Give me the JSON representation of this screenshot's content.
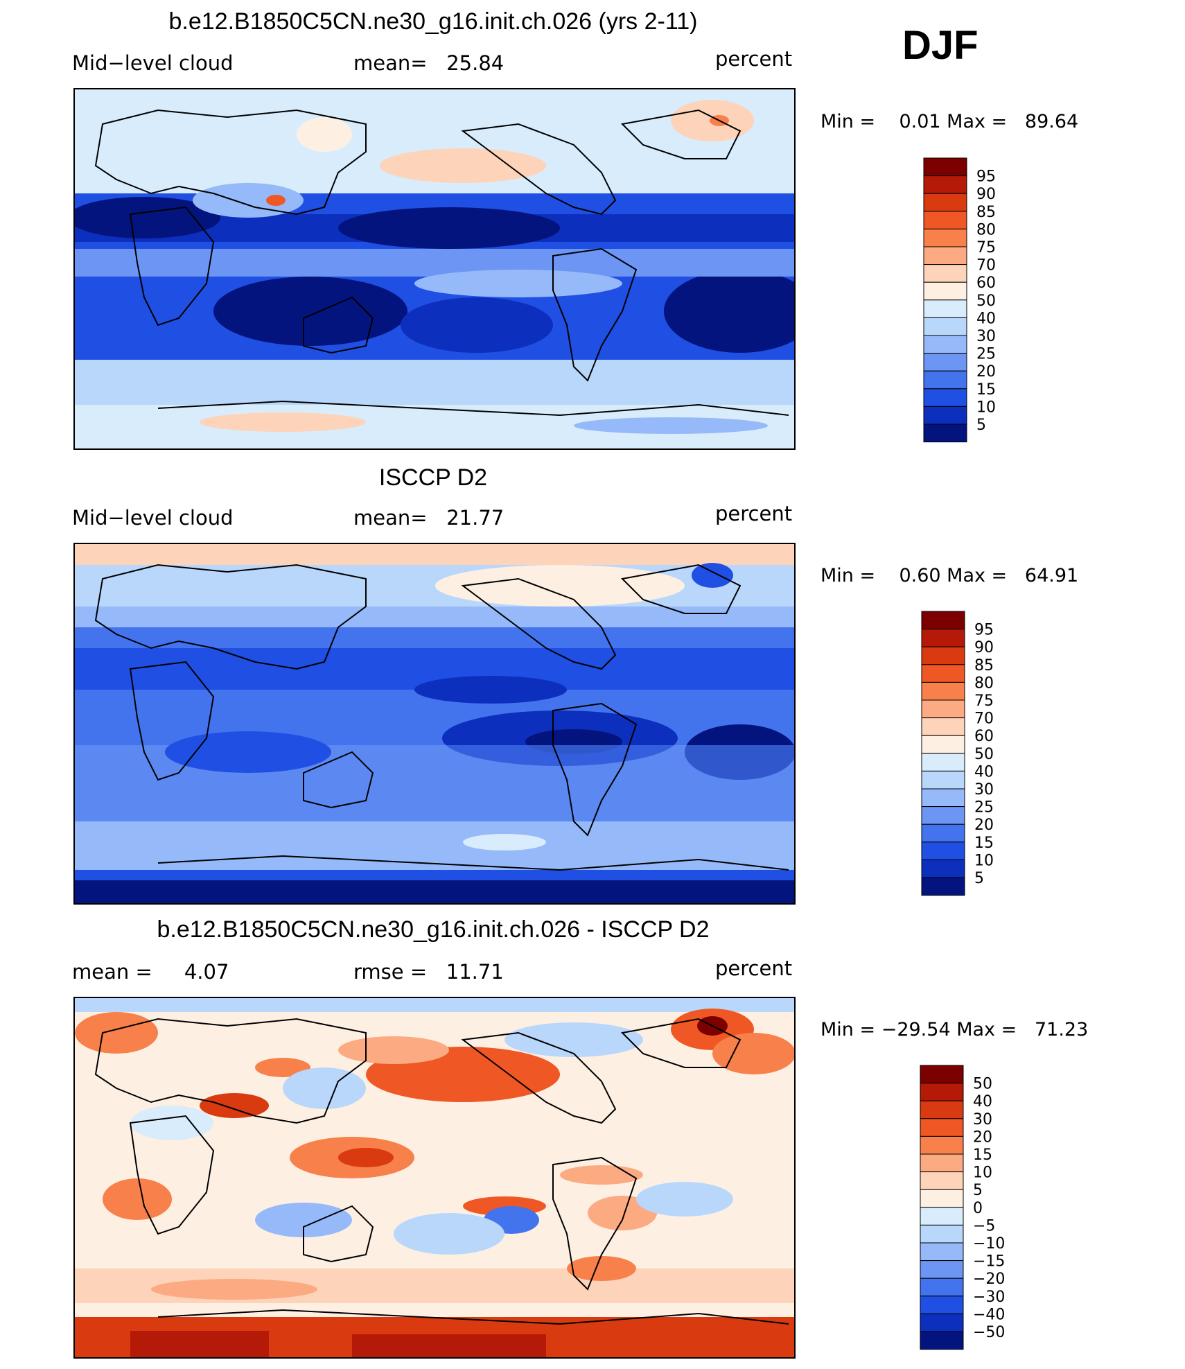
{
  "season": "DJF",
  "panels": [
    {
      "title": "b.e12.B1850C5CN.ne30_g16.init.ch.026 (yrs 2-11)",
      "left_label": "Mid−level cloud",
      "center_label": "mean=   25.84",
      "right_label": "percent",
      "minmax": "Min =    0.01 Max =   89.64",
      "map_type": "model",
      "colorbar_labels": [
        "95",
        "90",
        "85",
        "80",
        "75",
        "70",
        "60",
        "50",
        "40",
        "30",
        "25",
        "20",
        "15",
        "10",
        "5"
      ]
    },
    {
      "title": "ISCCP D2",
      "left_label": "Mid−level cloud",
      "center_label": "mean=   21.77",
      "right_label": "percent",
      "minmax": "Min =    0.60 Max =   64.91",
      "map_type": "obs",
      "colorbar_labels": [
        "95",
        "90",
        "85",
        "80",
        "75",
        "70",
        "60",
        "50",
        "40",
        "30",
        "25",
        "20",
        "15",
        "10",
        "5"
      ]
    },
    {
      "title": "b.e12.B1850C5CN.ne30_g16.init.ch.026 - ISCCP D2",
      "left_label": "mean =     4.07",
      "center_label": "rmse =   11.71",
      "right_label": "percent",
      "minmax": "Min = −29.54 Max =   71.23",
      "map_type": "diff",
      "colorbar_labels": [
        "50",
        "40",
        "30",
        "20",
        "15",
        "10",
        "5",
        "0",
        "−5",
        "−10",
        "−15",
        "−20",
        "−30",
        "−40",
        "−50"
      ]
    }
  ],
  "colors": {
    "abs_palette": [
      "#7d0000",
      "#b41a07",
      "#d93a10",
      "#ef5724",
      "#f8804a",
      "#fbaa82",
      "#fdd3b9",
      "#fdf0e3",
      "#d9ecfc",
      "#b9d7fb",
      "#95b9f9",
      "#6d95f4",
      "#4473ee",
      "#1f4fe3",
      "#0d2fbd",
      "#04147e"
    ],
    "diff_palette": [
      "#7d0000",
      "#b41a07",
      "#d93a10",
      "#ef5724",
      "#f8804a",
      "#fbaa82",
      "#fdd3b9",
      "#fdf0e3",
      "#d9ecfc",
      "#b9d7fb",
      "#95b9f9",
      "#6d95f4",
      "#4473ee",
      "#1f4fe3",
      "#0d2fbd",
      "#04147e"
    ]
  }
}
